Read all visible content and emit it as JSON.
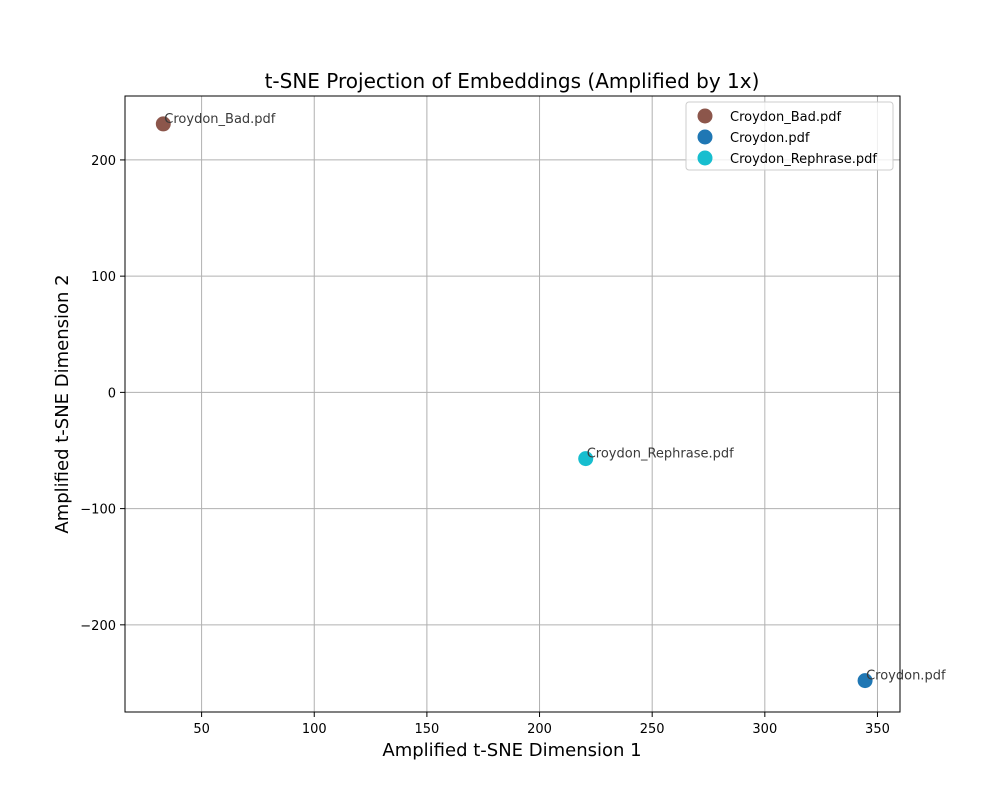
{
  "chart_data": {
    "type": "scatter",
    "title": "t-SNE Projection of Embeddings (Amplified by 1x)",
    "xlabel": "Amplified t-SNE Dimension 1",
    "ylabel": "Amplified t-SNE Dimension 2",
    "xlim": [
      16,
      360
    ],
    "ylim": [
      -275,
      255
    ],
    "xticks": [
      50,
      100,
      150,
      200,
      250,
      300,
      350
    ],
    "yticks": [
      -200,
      -100,
      0,
      100,
      200
    ],
    "grid": true,
    "legend_position": "top-right",
    "series": [
      {
        "name": "Croydon_Bad.pdf",
        "color": "#8c564b",
        "x": [
          33
        ],
        "y": [
          231
        ],
        "labels": [
          "Croydon_Bad.pdf"
        ]
      },
      {
        "name": "Croydon.pdf",
        "color": "#1f77b4",
        "x": [
          344.5
        ],
        "y": [
          -248
        ],
        "labels": [
          "Croydon.pdf"
        ]
      },
      {
        "name": "Croydon_Rephrase.pdf",
        "color": "#17becf",
        "x": [
          220.5
        ],
        "y": [
          -57
        ],
        "labels": [
          "Croydon_Rephrase.pdf"
        ]
      }
    ]
  }
}
